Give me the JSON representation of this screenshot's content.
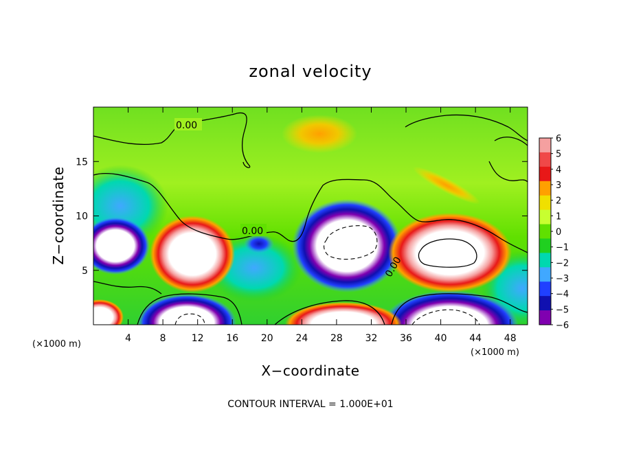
{
  "chart_data": {
    "type": "heatmap",
    "title": "zonal velocity",
    "xlabel": "X−coordinate",
    "ylabel": "Z−coordinate",
    "x_unit_left": "(×1000 m)",
    "x_unit_right": "(×1000 m)",
    "xlim": [
      0,
      50
    ],
    "ylim": [
      0,
      20
    ],
    "x_ticks": [
      4,
      8,
      12,
      16,
      20,
      24,
      28,
      32,
      36,
      40,
      44,
      48
    ],
    "y_ticks": [
      5,
      10,
      15
    ],
    "footer": "CONTOUR INTERVAL = 1.000E+01",
    "contour_labels": [
      "0.00",
      "0.00",
      "0.00"
    ],
    "colorbar": {
      "levels": [
        6,
        5,
        4,
        3,
        2,
        1,
        0,
        -1,
        -2,
        -3,
        -4,
        -5,
        -6
      ],
      "tick_labels": [
        "6",
        "5",
        "4",
        "3",
        "2",
        "1",
        "0",
        "−1",
        "−2",
        "−3",
        "−4",
        "−5",
        "−6"
      ],
      "colors": [
        "#f5a0a0",
        "#f04848",
        "#e81818",
        "#ffa000",
        "#f0e000",
        "#c8ff30",
        "#60e000",
        "#20d020",
        "#00d8b0",
        "#40a8ff",
        "#2040ff",
        "#1010b0",
        "#8000b0"
      ]
    },
    "features": [
      {
        "name": "positive-core-left",
        "x": 10.5,
        "z": 6.5,
        "value": 6
      },
      {
        "name": "positive-core-right",
        "x": 40.5,
        "z": 6.8,
        "value": 6
      },
      {
        "name": "negative-core-mid",
        "x": 29.5,
        "z": 7.2,
        "value": -6
      },
      {
        "name": "negative-core-far-left",
        "x": 2.5,
        "z": 7.2,
        "value": -6
      },
      {
        "name": "negative-core-bottom-left",
        "x": 11.5,
        "z": 1.0,
        "value": -6
      },
      {
        "name": "negative-core-bottom-right",
        "x": 41.0,
        "z": 1.0,
        "value": -6
      },
      {
        "name": "positive-core-bottom-mid",
        "x": 29.5,
        "z": 0.8,
        "value": 6
      },
      {
        "name": "positive-upper",
        "x": 26.5,
        "z": 17.5,
        "value": 3
      }
    ]
  }
}
